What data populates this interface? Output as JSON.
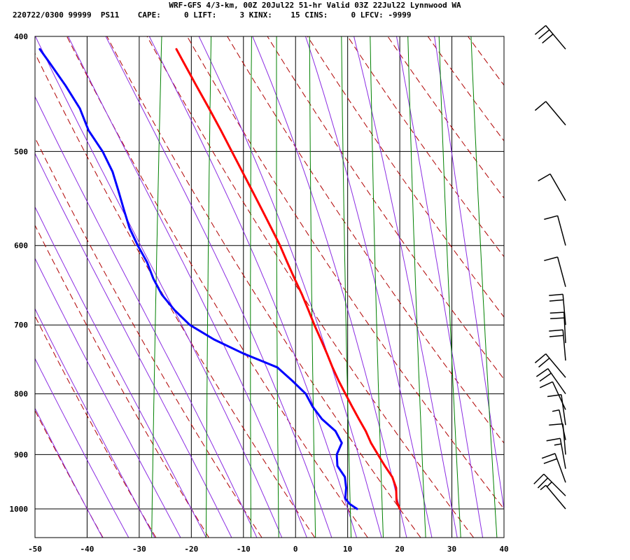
{
  "header": {
    "line1": "WRF-GFS 4/3-km, 00Z 20Jul22 51-hr Valid 03Z 22Jul22 Lynnwood WA",
    "line2": "220722/0300 99999  PS11    CAPE:     0 LIFT:     3 KINX:    15 CINS:     0 LFCV: -9999"
  },
  "chart_data": {
    "type": "line",
    "chart_kind": "skew-T log-P sounding",
    "title": "WRF-GFS 4/3-km, 00Z 20Jul22 51-hr Valid 03Z 22Jul22 Lynnwood WA",
    "xlabel": "",
    "ylabel": "",
    "x_ticks": [
      -50,
      -40,
      -30,
      -20,
      -10,
      0,
      10,
      20,
      30,
      40
    ],
    "y_ticks": [
      400,
      500,
      600,
      700,
      800,
      900,
      1000
    ],
    "xlim": [
      -50,
      40
    ],
    "ylim": [
      1040,
      400
    ],
    "y_scale": "log (pressure, hPa)",
    "grid": true,
    "colors": {
      "temperature": "#ff0000",
      "dewpoint": "#0000ff",
      "dry_adiabat": "#b00000",
      "moist_adiabat": "#8a2be2",
      "mixing_ratio": "#008000",
      "grid": "#000000",
      "wind": "#000000"
    },
    "series": [
      {
        "key": "temperature",
        "unit": "°C",
        "p": [
          1000,
          985,
          960,
          940,
          920,
          900,
          880,
          860,
          840,
          820,
          800,
          780,
          760,
          740,
          720,
          700,
          680,
          660,
          640,
          620,
          600,
          580,
          560,
          540,
          520,
          500,
          480,
          460,
          440,
          420,
          410
        ],
        "values": [
          20,
          19.2,
          18.8,
          17.8,
          16.1,
          14.5,
          12.9,
          11.6,
          10.0,
          8.4,
          6.8,
          5.2,
          3.7,
          2.3,
          0.8,
          -0.8,
          -2.3,
          -3.9,
          -5.7,
          -7.5,
          -9.3,
          -11.4,
          -13.6,
          -15.9,
          -18.3,
          -20.8,
          -23.4,
          -26.2,
          -29.2,
          -32.3,
          -33.9
        ]
      },
      {
        "key": "dewpoint",
        "unit": "°C",
        "p": [
          1000,
          990,
          980,
          960,
          940,
          920,
          900,
          880,
          860,
          840,
          820,
          800,
          780,
          760,
          740,
          720,
          700,
          680,
          660,
          640,
          620,
          600,
          580,
          560,
          540,
          520,
          500,
          480,
          460,
          440,
          420,
          410
        ],
        "values": [
          11.8,
          10.2,
          9.3,
          9.2,
          8.7,
          7.0,
          6.6,
          7.3,
          5.8,
          2.9,
          0.8,
          -0.8,
          -3.7,
          -6.9,
          -13.7,
          -19.7,
          -24.7,
          -28.0,
          -30.8,
          -32.8,
          -34.4,
          -36.6,
          -38.6,
          -40.1,
          -41.6,
          -43.2,
          -45.6,
          -48.8,
          -51.0,
          -54.3,
          -58.1,
          -60.1
        ]
      }
    ],
    "wind_barbs": [
      {
        "p": 1000,
        "shaft_deg": 40,
        "barbs": [
          0.5
        ]
      },
      {
        "p": 975,
        "shaft_deg": 45,
        "barbs": [
          1,
          1,
          0.5
        ]
      },
      {
        "p": 950,
        "shaft_deg": 20,
        "barbs": [
          1,
          1
        ]
      },
      {
        "p": 925,
        "shaft_deg": 10,
        "barbs": [
          1,
          0.5
        ]
      },
      {
        "p": 900,
        "shaft_deg": 5,
        "barbs": [
          1
        ]
      },
      {
        "p": 875,
        "shaft_deg": 12,
        "barbs": [
          0.5
        ]
      },
      {
        "p": 850,
        "shaft_deg": 8,
        "barbs": [
          1
        ]
      },
      {
        "p": 825,
        "shaft_deg": 25,
        "barbs": [
          1
        ]
      },
      {
        "p": 800,
        "shaft_deg": 35,
        "barbs": [
          1,
          1
        ]
      },
      {
        "p": 775,
        "shaft_deg": 40,
        "barbs": [
          1,
          1
        ]
      },
      {
        "p": 750,
        "shaft_deg": 5,
        "barbs": [
          1,
          1
        ]
      },
      {
        "p": 725,
        "shaft_deg": 3,
        "barbs": [
          1,
          1
        ]
      },
      {
        "p": 700,
        "shaft_deg": 5,
        "barbs": [
          1,
          1
        ]
      },
      {
        "p": 650,
        "shaft_deg": 15,
        "barbs": [
          1
        ]
      },
      {
        "p": 600,
        "shaft_deg": 15,
        "barbs": [
          1
        ]
      },
      {
        "p": 550,
        "shaft_deg": 30,
        "barbs": [
          1
        ]
      },
      {
        "p": 475,
        "shaft_deg": 40,
        "barbs": [
          1
        ]
      },
      {
        "p": 410,
        "shaft_deg": 40,
        "barbs": [
          1,
          1,
          1
        ]
      }
    ]
  }
}
